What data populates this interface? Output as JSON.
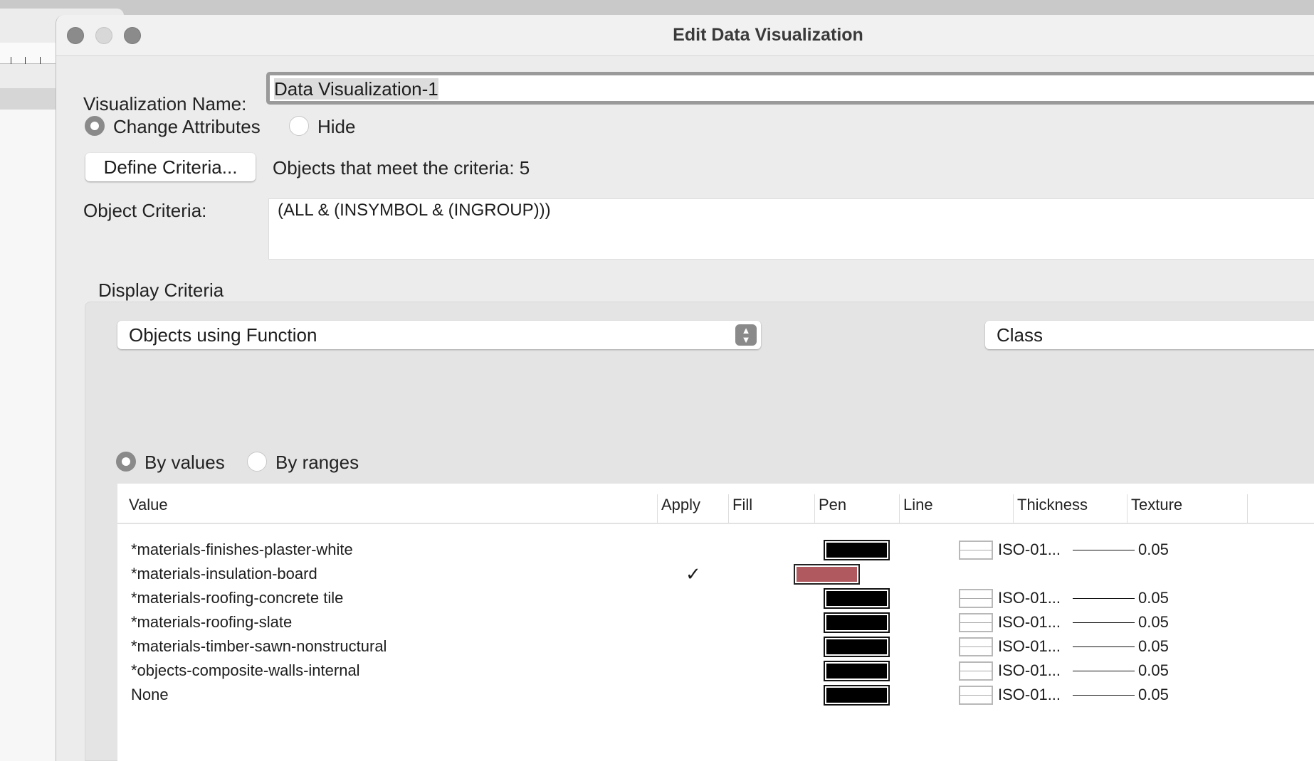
{
  "window": {
    "title": "Edit Data Visualization"
  },
  "form": {
    "name_label": "Visualization Name:",
    "name_value": "Data Visualization-1",
    "mode_options": [
      {
        "label": "Change Attributes",
        "selected": true
      },
      {
        "label": "Hide",
        "selected": false
      }
    ],
    "define_button": "Define Criteria...",
    "count_text": "Objects that meet the criteria: 5",
    "criteria_label": "Object Criteria:",
    "criteria_value": "(ALL & (INSYMBOL & (INGROUP)))"
  },
  "display": {
    "label": "Display Criteria",
    "select_value": "Objects using Function",
    "class_value": "Class",
    "by_options": [
      {
        "label": "By values",
        "selected": true
      },
      {
        "label": "By ranges",
        "selected": false
      }
    ]
  },
  "table": {
    "columns": [
      "Value",
      "Apply",
      "Fill",
      "Pen",
      "Line",
      "Thickness",
      "Texture"
    ],
    "rows": [
      {
        "value": "*materials-finishes-plaster-white",
        "apply": false,
        "fill": null,
        "pen": "#000000",
        "line": "ISO-01...",
        "thickness": "0.05"
      },
      {
        "value": "*materials-insulation-board",
        "apply": true,
        "fill": "#b05a60",
        "pen": null,
        "line": null,
        "thickness": null
      },
      {
        "value": "*materials-roofing-concrete tile",
        "apply": false,
        "fill": null,
        "pen": "#000000",
        "line": "ISO-01...",
        "thickness": "0.05"
      },
      {
        "value": "*materials-roofing-slate",
        "apply": false,
        "fill": null,
        "pen": "#000000",
        "line": "ISO-01...",
        "thickness": "0.05"
      },
      {
        "value": "*materials-timber-sawn-nonstructural",
        "apply": false,
        "fill": null,
        "pen": "#000000",
        "line": "ISO-01...",
        "thickness": "0.05"
      },
      {
        "value": "*objects-composite-walls-internal",
        "apply": false,
        "fill": null,
        "pen": "#000000",
        "line": "ISO-01...",
        "thickness": "0.05"
      },
      {
        "value": "None",
        "apply": false,
        "fill": null,
        "pen": "#000000",
        "line": "ISO-01...",
        "thickness": "0.05"
      }
    ],
    "check_glyph": "✓"
  }
}
